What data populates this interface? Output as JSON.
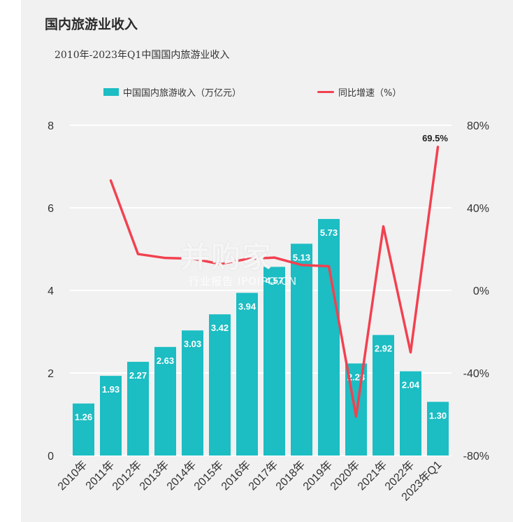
{
  "title": "国内旅游业收入",
  "subtitle": "2010年-2023年Q1中国国内旅游业收入",
  "legend": {
    "bars": "中国国内旅游收入（万亿元）",
    "line": "同比增速（%）"
  },
  "watermark": {
    "brand": "并购家",
    "site": "行业报告 IPOIPO.CN"
  },
  "colors": {
    "bar": "#1cbdc3",
    "line": "#f24150",
    "grid": "#ffffff",
    "axis_text": "#333333"
  },
  "chart_data": {
    "type": "bar",
    "categories": [
      "2010年",
      "2011年",
      "2012年",
      "2013年",
      "2014年",
      "2015年",
      "2016年",
      "2017年",
      "2018年",
      "2019年",
      "2020年",
      "2021年",
      "2022年",
      "2023年Q1"
    ],
    "series": [
      {
        "name": "中国国内旅游收入（万亿元）",
        "type": "bar",
        "axis": "left",
        "values": [
          1.26,
          1.93,
          2.27,
          2.63,
          3.03,
          3.42,
          3.94,
          4.57,
          5.13,
          5.73,
          2.23,
          2.92,
          2.04,
          1.3
        ],
        "labels": [
          "1.26",
          "1.93",
          "2.27",
          "2.63",
          "3.03",
          "3.42",
          "3.94",
          "4.57",
          "5.13",
          "5.73",
          "2.23",
          "2.92",
          "2.04",
          "1.30"
        ]
      },
      {
        "name": "同比增速（%）",
        "type": "line",
        "axis": "right",
        "values": [
          null,
          53.2,
          17.6,
          15.7,
          15.4,
          12.8,
          15.2,
          15.9,
          12.3,
          11.7,
          -61.1,
          31.0,
          -30.0,
          69.5
        ],
        "point_labels": {
          "13": "69.5%"
        }
      }
    ],
    "ylim_left": [
      0,
      8
    ],
    "yticks_left": [
      "0",
      "2",
      "4",
      "6",
      "8"
    ],
    "ylim_right": [
      -80,
      80
    ],
    "yticks_right": [
      "-80%",
      "-40%",
      "0%",
      "40%",
      "80%"
    ],
    "grid": true,
    "legend_position": "top"
  }
}
